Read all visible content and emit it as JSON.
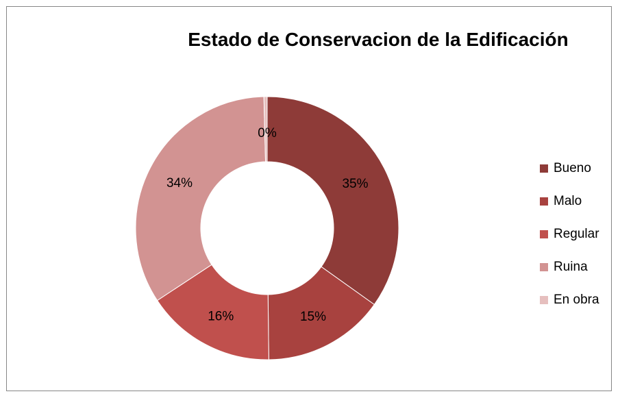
{
  "chart_data": {
    "type": "pie",
    "donut": true,
    "title": "Estado de Conservacion de  la Edificación",
    "categories": [
      "Bueno",
      "Malo",
      "Regular",
      "Ruina",
      "En obra"
    ],
    "values": [
      35,
      15,
      16,
      34,
      0.4
    ],
    "data_labels": [
      "35%",
      "15%",
      "16%",
      "34%",
      "0%"
    ],
    "colors": [
      "#8E3B38",
      "#A8423F",
      "#C0504D",
      "#D29392",
      "#E6BFBE"
    ],
    "legend": "right"
  }
}
